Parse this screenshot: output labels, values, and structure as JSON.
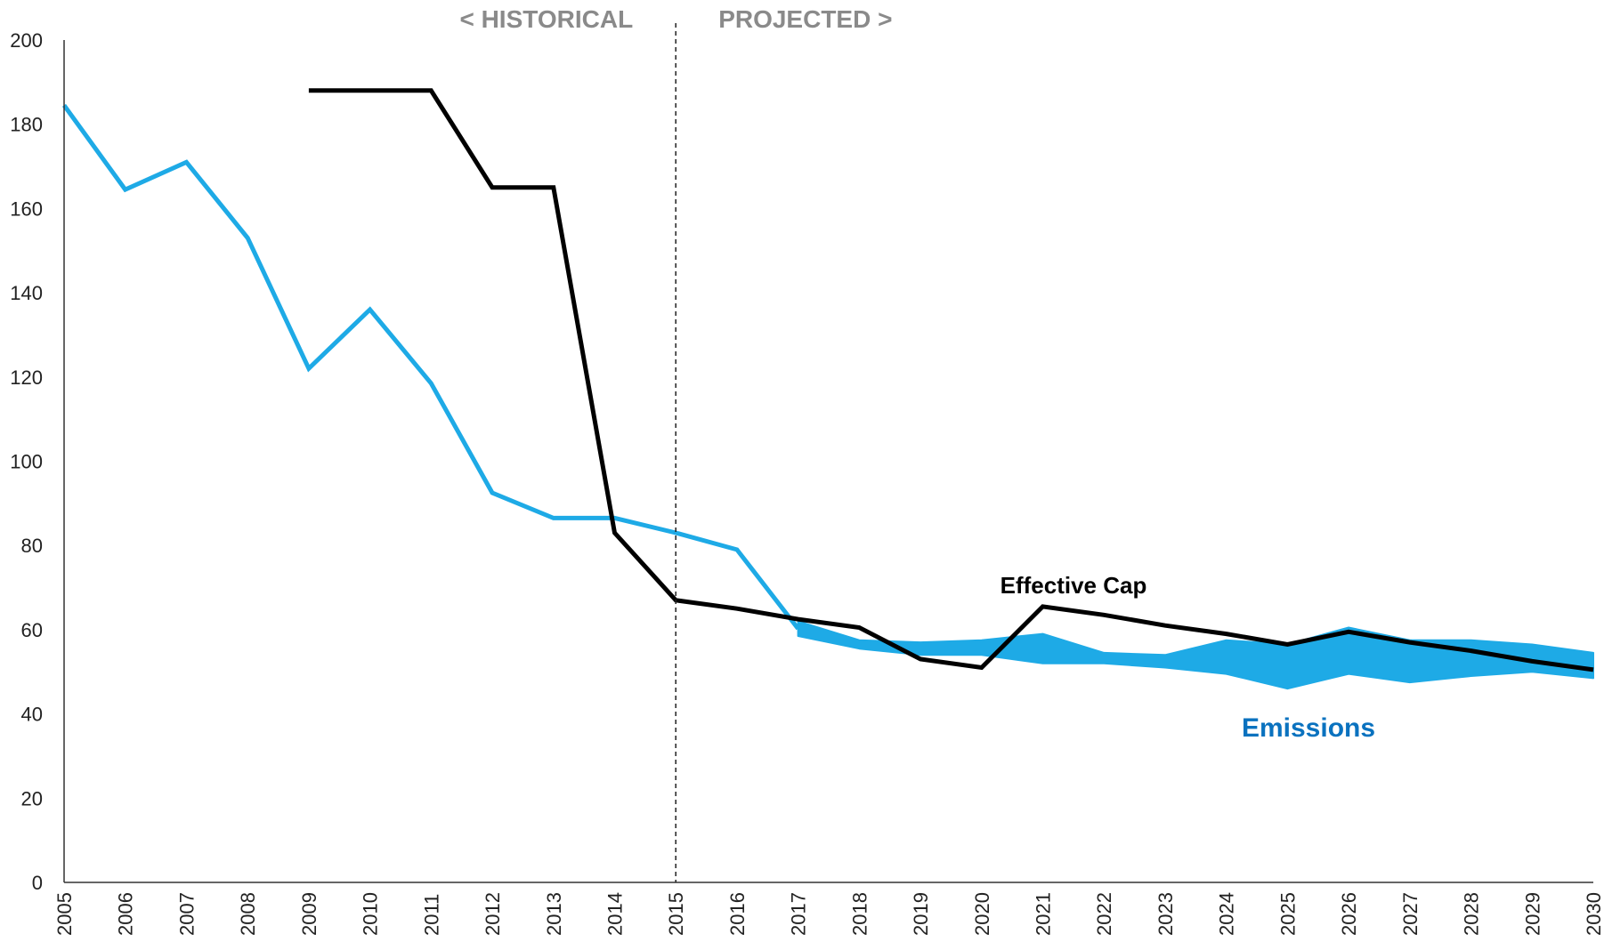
{
  "chart_data": {
    "type": "line",
    "title": "",
    "xlabel": "",
    "ylabel": "",
    "ylim": [
      0,
      200
    ],
    "yticks": [
      0,
      20,
      40,
      60,
      80,
      100,
      120,
      140,
      160,
      180,
      200
    ],
    "x": [
      "2005",
      "2006",
      "2007",
      "2008",
      "2009",
      "2010",
      "2011",
      "2012",
      "2013",
      "2014",
      "2015",
      "2016",
      "2017",
      "2018",
      "2019",
      "2020",
      "2021",
      "2022",
      "2023",
      "2024",
      "2025",
      "2026",
      "2027",
      "2028",
      "2029",
      "2030"
    ],
    "divider": {
      "x": "2015",
      "left_label": "< HISTORICAL",
      "right_label": "PROJECTED >"
    },
    "series": [
      {
        "name": "Emissions",
        "color": "#1eaae6",
        "label_color": "#0a72bf",
        "values": [
          184.5,
          164.5,
          171,
          153,
          122,
          136,
          118.5,
          92.5,
          86.5,
          86.5,
          83,
          79,
          null,
          null,
          null,
          null,
          null,
          null,
          null,
          null,
          null,
          null,
          null,
          null,
          null,
          null
        ],
        "band_upper": [
          null,
          null,
          null,
          null,
          null,
          null,
          null,
          null,
          null,
          null,
          null,
          null,
          62,
          57.5,
          57,
          57.5,
          59,
          54.5,
          54,
          57.5,
          56.5,
          60.5,
          57.5,
          57.5,
          56.5,
          54.5
        ],
        "band_lower": [
          null,
          null,
          null,
          null,
          null,
          null,
          null,
          null,
          null,
          null,
          null,
          null,
          58.5,
          55.5,
          54,
          54,
          52,
          52,
          51,
          49.5,
          46,
          49.5,
          47.5,
          49,
          50,
          48.5
        ]
      },
      {
        "name": "Effective Cap",
        "color": "#000000",
        "label_color": "#000000",
        "values": [
          null,
          null,
          null,
          null,
          188,
          188,
          188,
          165,
          165,
          83,
          67,
          65,
          62.5,
          60.5,
          53,
          51,
          65.5,
          63.5,
          61,
          59,
          56.5,
          59.5,
          57,
          55,
          52.5,
          50.5
        ]
      }
    ]
  }
}
